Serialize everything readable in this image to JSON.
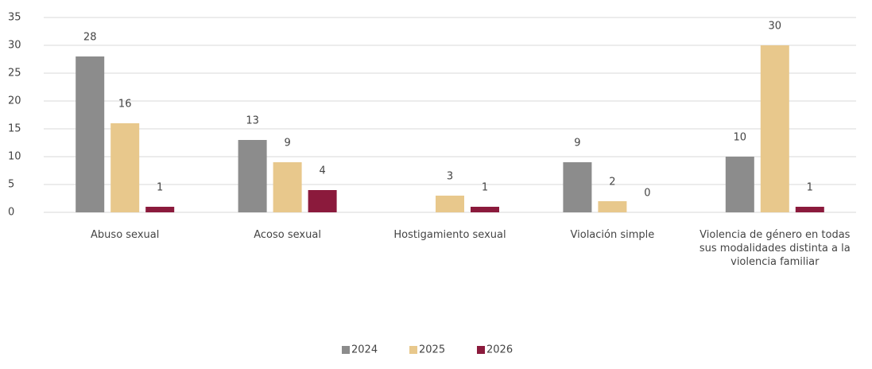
{
  "chart_data": {
    "type": "bar",
    "categories": [
      "Abuso sexual",
      "Acoso sexual",
      "Hostigamiento sexual",
      "Violación simple",
      "Violencia de género en todas sus modalidades distinta a la violencia familiar"
    ],
    "series": [
      {
        "name": "2024",
        "color": "#8c8c8c",
        "values": [
          28,
          13,
          null,
          9,
          10
        ]
      },
      {
        "name": "2025",
        "color": "#e8c88c",
        "values": [
          16,
          9,
          3,
          2,
          30
        ]
      },
      {
        "name": "2026",
        "color": "#8b1a3c",
        "values": [
          1,
          4,
          1,
          0,
          1
        ]
      }
    ],
    "ylim": [
      0,
      35
    ],
    "yticks": [
      0,
      5,
      10,
      15,
      20,
      25,
      30,
      35
    ],
    "grid": true,
    "legend": "bottom"
  }
}
